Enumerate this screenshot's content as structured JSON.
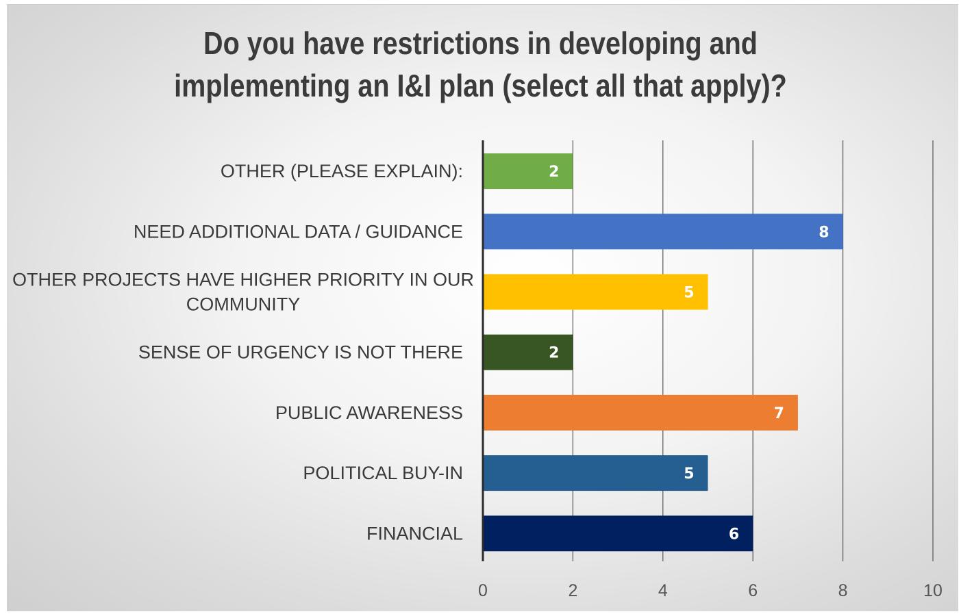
{
  "chart_data": {
    "type": "bar",
    "orientation": "horizontal",
    "title_lines": [
      "Do you have restrictions in developing and",
      "implementing an I&I plan (select all that apply)?"
    ],
    "categories": [
      [
        "OTHER (PLEASE EXPLAIN):"
      ],
      [
        "NEED ADDITIONAL DATA / GUIDANCE"
      ],
      [
        "OTHER PROJECTS HAVE HIGHER PRIORITY IN OUR",
        "COMMUNITY"
      ],
      [
        "SENSE OF URGENCY IS NOT THERE"
      ],
      [
        "PUBLIC AWARENESS"
      ],
      [
        "POLITICAL BUY-IN"
      ],
      [
        "FINANCIAL"
      ]
    ],
    "values": [
      2,
      8,
      5,
      2,
      7,
      5,
      6
    ],
    "colors": [
      "#70ad47",
      "#4472c4",
      "#ffc000",
      "#375623",
      "#ed7d31",
      "#255e91",
      "#002060"
    ],
    "xlim": [
      0,
      10
    ],
    "xticks": [
      "0",
      "2",
      "4",
      "6",
      "8",
      "10"
    ],
    "grid": "vertical",
    "legend": "none",
    "data_labels": true
  }
}
